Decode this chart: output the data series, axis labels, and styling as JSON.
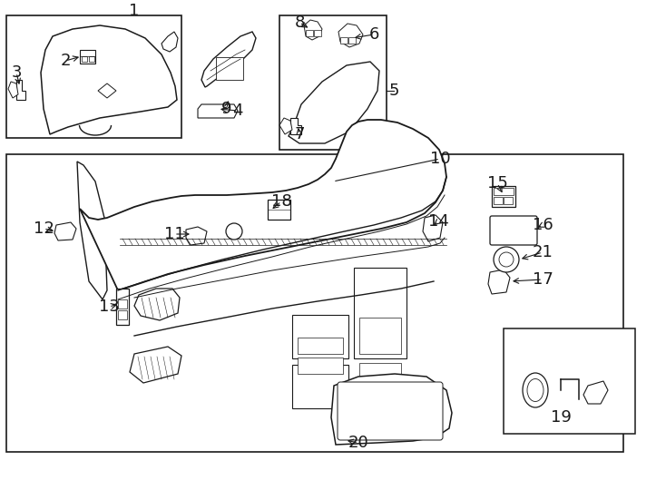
{
  "bg": "#ffffff",
  "lc": "#1a1a1a",
  "fw": 7.34,
  "fh": 5.4,
  "dpi": 100
}
